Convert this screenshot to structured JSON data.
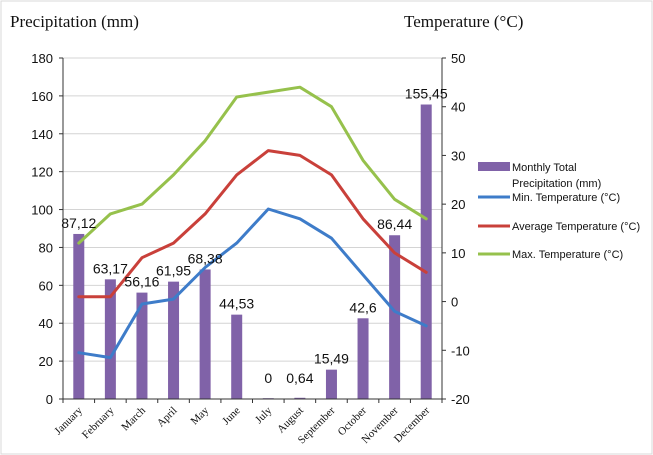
{
  "chart_data": {
    "type": "bar",
    "left_axis_title": "Precipitation (mm)",
    "right_axis_title": "Temperature (°C)",
    "categories": [
      "January",
      "February",
      "March",
      "April",
      "May",
      "June",
      "July",
      "August",
      "September",
      "October",
      "November",
      "December"
    ],
    "left_ylim": [
      0,
      180
    ],
    "left_ticks": [
      0,
      20,
      40,
      60,
      80,
      100,
      120,
      140,
      160,
      180
    ],
    "right_ylim": [
      -20,
      50
    ],
    "right_ticks": [
      -20,
      -10,
      0,
      10,
      20,
      30,
      40,
      50
    ],
    "grid": true,
    "legend_position": "right",
    "bars": {
      "name": "Monthly Total Precipitation (mm)",
      "color": "#8062a8",
      "values": [
        87.12,
        63.17,
        56.16,
        61.95,
        68.38,
        44.53,
        0,
        0.64,
        15.49,
        42.6,
        86.44,
        155.45
      ],
      "labels": [
        "87,12",
        "63,17",
        "56,16",
        "61,95",
        "68,38",
        "44,53",
        "0",
        "0,64",
        "15,49",
        "42,6",
        "86,44",
        "155,45"
      ]
    },
    "series": [
      {
        "name": "Min. Temperature (°C)",
        "color": "#3e7cc9",
        "axis": "right",
        "values": [
          -10.5,
          -11.5,
          -0.5,
          0.5,
          7,
          12,
          19,
          17,
          13,
          5.5,
          -2,
          -5
        ]
      },
      {
        "name": "Average Temperature (°C)",
        "color": "#c9403a",
        "axis": "right",
        "values": [
          1,
          1,
          9,
          12,
          18,
          26,
          31,
          30,
          26,
          17,
          10,
          6
        ]
      },
      {
        "name": "Max. Temperature (°C)",
        "color": "#96c14c",
        "axis": "right",
        "values": [
          12,
          18,
          20,
          26,
          33,
          42,
          43,
          44,
          40,
          29,
          21,
          17
        ]
      }
    ]
  }
}
